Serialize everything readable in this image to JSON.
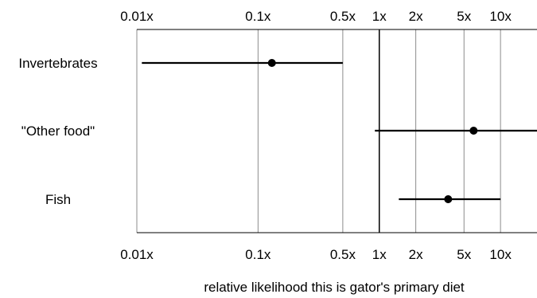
{
  "chart_data": {
    "type": "scatter",
    "subtype": "forest-plot",
    "xscale": "log",
    "xlim": [
      0.01,
      20
    ],
    "ticks": [
      0.01,
      0.1,
      0.5,
      1,
      2,
      5,
      10
    ],
    "tick_labels": [
      "0.01x",
      "0.1x",
      "0.5x",
      "1x",
      "2x",
      "5x",
      "10x"
    ],
    "tick_labels_top": true,
    "tick_labels_bottom": true,
    "reference_line": 1,
    "xlabel": "relative likelihood this is gator's primary diet",
    "categories": [
      "Invertebrates",
      "\"Other food\"",
      "Fish"
    ],
    "series": [
      {
        "category": "Invertebrates",
        "estimate": 0.13,
        "lower": 0.011,
        "upper": 0.5
      },
      {
        "category": "\"Other food\"",
        "estimate": 6,
        "lower": 0.92,
        "upper": 20
      },
      {
        "category": "Fish",
        "estimate": 3.7,
        "lower": 1.45,
        "upper": 10
      }
    ],
    "grid": true,
    "colors": {
      "line": "#000000",
      "grid": "#8c8c8c",
      "background": "#ffffff"
    }
  }
}
